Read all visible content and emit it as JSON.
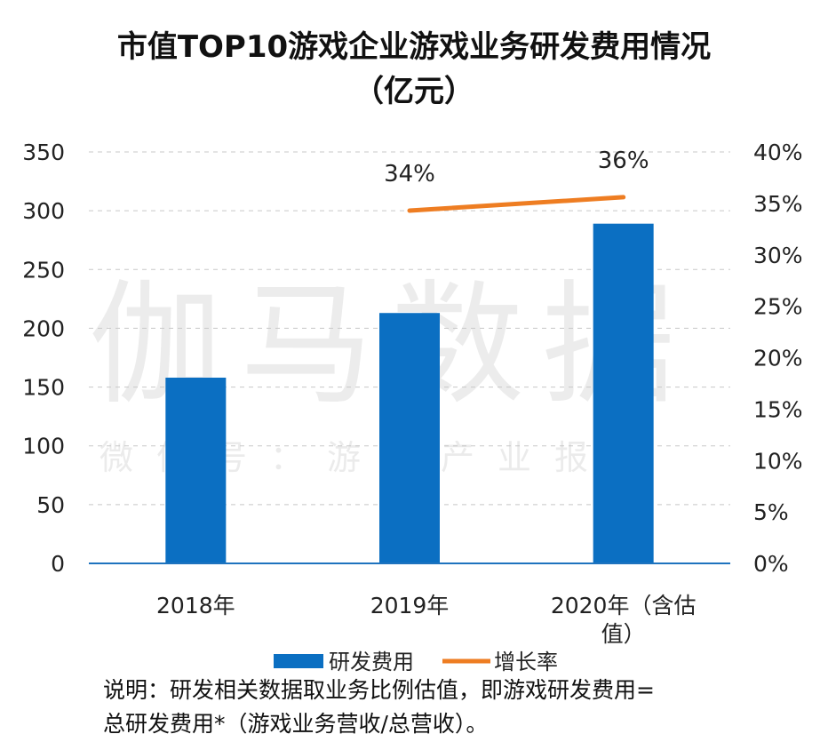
{
  "chart_data": {
    "type": "bar",
    "title_line1": "市值TOP10游戏企业游戏业务研发费用情况",
    "title_line2": "（亿元）",
    "categories": [
      {
        "line1": "2018年",
        "line2": ""
      },
      {
        "line1": "2019年",
        "line2": ""
      },
      {
        "line1": "2020年（含估",
        "line2": "值）"
      }
    ],
    "series": [
      {
        "name": "研发费用",
        "kind": "bar",
        "axis": "left",
        "color": "#0b6fc2",
        "values": [
          158,
          213,
          289
        ]
      },
      {
        "name": "增长率",
        "kind": "line",
        "axis": "right",
        "color": "#ee7d22",
        "values": [
          null,
          34,
          36
        ],
        "plotted": [
          null,
          34.3,
          35.6
        ],
        "labels": [
          "",
          "34%",
          "36%"
        ]
      }
    ],
    "y_left": {
      "min": 0,
      "max": 350,
      "step": 50,
      "ticks": [
        "0",
        "50",
        "100",
        "150",
        "200",
        "250",
        "300",
        "350"
      ]
    },
    "y_right": {
      "min": 0,
      "max": 40,
      "step": 5,
      "ticks": [
        "0%",
        "5%",
        "10%",
        "15%",
        "20%",
        "25%",
        "30%",
        "35%",
        "40%"
      ]
    },
    "grid": true,
    "legend_position": "bottom",
    "watermark_line1": "伽马数据",
    "watermark_line2": "微信号：游戏产业报告"
  },
  "note": {
    "line1": "说明：研发相关数据取业务比例估值，即游戏研发费用=",
    "line2": "总研发费用*（游戏业务营收/总营收）。"
  }
}
